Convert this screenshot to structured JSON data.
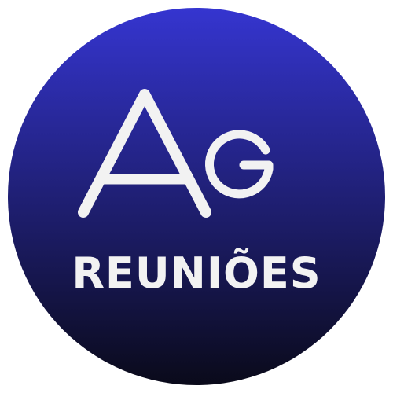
{
  "logo": {
    "wordmark": "REUNIÕES",
    "monogram": "Ag",
    "colors": {
      "gradient_top": "#3535d0",
      "gradient_bottom": "#0a0a1a",
      "text": "#f2f2f2",
      "background": "#ffffff"
    }
  }
}
